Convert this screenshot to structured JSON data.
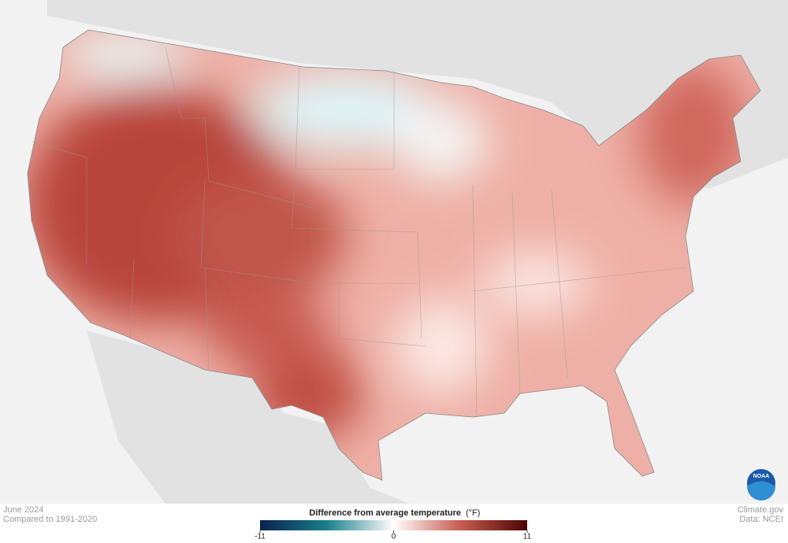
{
  "caption": {
    "period": "June 2024",
    "baseline": "Compared to 1991-2020"
  },
  "credits": {
    "site": "Climate.gov",
    "source": "Data: NCEI",
    "logo": "NOAA"
  },
  "legend": {
    "title": "Difference from average temperature",
    "unit": "(°F)",
    "ticks": [
      -11,
      0,
      11
    ],
    "colors": [
      "#08214f",
      "#1a7f8c",
      "#ffffff",
      "#c75c50",
      "#4a0503"
    ]
  }
}
